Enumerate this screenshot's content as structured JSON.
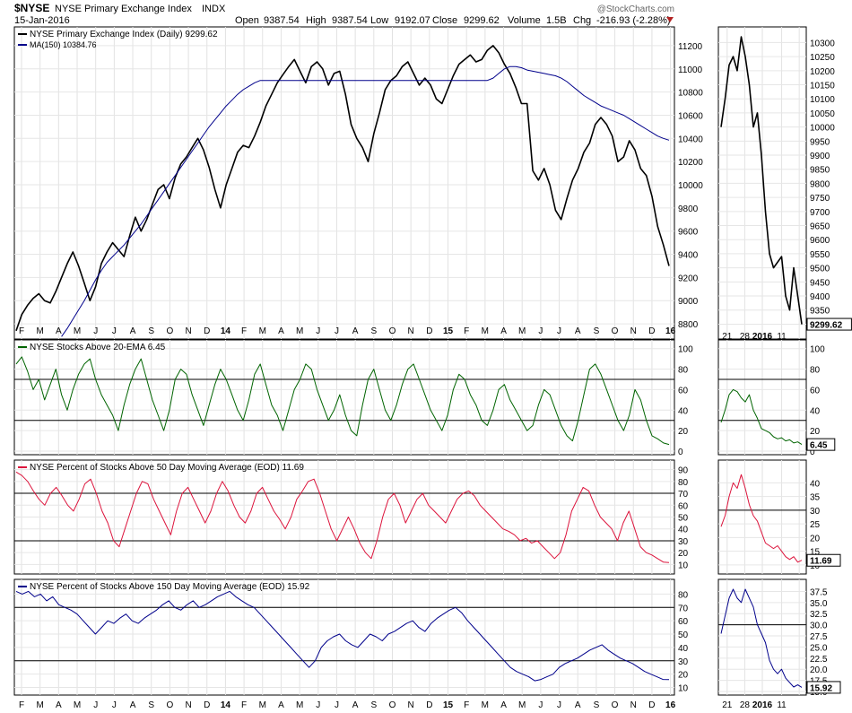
{
  "header": {
    "symbol": "$NYSE",
    "name": "NYSE Primary Exchange Index",
    "exchange": "INDX",
    "date": "15-Jan-2016",
    "open_label": "Open",
    "open": "9387.54",
    "high_label": "High",
    "high": "9387.54",
    "low_label": "Low",
    "low": "9192.07",
    "close_label": "Close",
    "close": "9299.62",
    "volume_label": "Volume",
    "volume": "1.5B",
    "chg_label": "Chg",
    "chg": "-216.93 (-2.28%)",
    "watermark": "@StockCharts.com"
  },
  "x_axis": {
    "months": [
      "F",
      "M",
      "A",
      "M",
      "J",
      "J",
      "A",
      "S",
      "O",
      "N",
      "D",
      "14",
      "F",
      "M",
      "A",
      "M",
      "J",
      "J",
      "A",
      "S",
      "O",
      "N",
      "D",
      "15",
      "F",
      "M",
      "A",
      "M",
      "J",
      "J",
      "A",
      "S",
      "O",
      "N",
      "D",
      "16"
    ],
    "zoom_labels": [
      "21",
      "28",
      "2016",
      "11"
    ]
  },
  "colors": {
    "price": "#000000",
    "ma": "#00008b",
    "ema": "#006400",
    "p50": "#dc143c",
    "p150": "#00008b"
  },
  "chart_data": [
    {
      "type": "line",
      "title": "NYSE Primary Exchange Index (Daily) 9299.62",
      "legend": [
        "NYSE Primary Exchange Index (Daily) 9299.62",
        "MA(150) 10384.76"
      ],
      "ylim": [
        8700,
        11300
      ],
      "yticks": [
        8800,
        9000,
        9200,
        9400,
        9600,
        9800,
        10000,
        10200,
        10400,
        10600,
        10800,
        11000,
        11200
      ],
      "series": [
        {
          "name": "NYSE",
          "key": "price",
          "values": [
            8740,
            8880,
            8960,
            9020,
            9060,
            9000,
            8980,
            9080,
            9200,
            9320,
            9420,
            9300,
            9150,
            9000,
            9120,
            9320,
            9420,
            9500,
            9440,
            9380,
            9560,
            9720,
            9600,
            9700,
            9830,
            9960,
            10000,
            9880,
            10060,
            10180,
            10240,
            10320,
            10400,
            10300,
            10150,
            9960,
            9800,
            10000,
            10140,
            10280,
            10340,
            10320,
            10420,
            10540,
            10680,
            10780,
            10880,
            10950,
            11020,
            11080,
            10980,
            10880,
            11020,
            11060,
            11000,
            10860,
            10960,
            10980,
            10780,
            10520,
            10400,
            10320,
            10200,
            10440,
            10620,
            10820,
            10900,
            10940,
            11020,
            11060,
            10960,
            10860,
            10920,
            10860,
            10740,
            10700,
            10820,
            10940,
            11040,
            11080,
            11120,
            11060,
            11080,
            11160,
            11200,
            11140,
            11040,
            10960,
            10840,
            10700,
            10700,
            10120,
            10040,
            10140,
            10000,
            9780,
            9700,
            9880,
            10040,
            10140,
            10280,
            10360,
            10520,
            10580,
            10520,
            10420,
            10200,
            10240,
            10380,
            10300,
            10140,
            10080,
            9900,
            9640,
            9480,
            9299.62
          ]
        },
        {
          "name": "MA(150)",
          "key": "ma",
          "values": [
            null,
            null,
            null,
            null,
            null,
            null,
            null,
            null,
            8690,
            8760,
            8840,
            8920,
            9000,
            9090,
            9180,
            9260,
            9330,
            9380,
            9430,
            9480,
            9540,
            9600,
            9660,
            9730,
            9800,
            9870,
            9940,
            10010,
            10080,
            10150,
            10220,
            10290,
            10360,
            10430,
            10500,
            10560,
            10620,
            10680,
            10730,
            10780,
            10820,
            10850,
            10880,
            10900,
            10900,
            10900,
            10900,
            10900,
            10900,
            10900,
            10900,
            10900,
            10900,
            10900,
            10900,
            10900,
            10900,
            10900,
            10900,
            10900,
            10900,
            10900,
            10900,
            10900,
            10900,
            10900,
            10900,
            10900,
            10900,
            10900,
            10900,
            10900,
            10900,
            10900,
            10900,
            10900,
            10900,
            10900,
            10900,
            10900,
            10900,
            10900,
            10900,
            10900,
            10920,
            10960,
            11000,
            11020,
            11020,
            11010,
            10990,
            10980,
            10970,
            10960,
            10950,
            10940,
            10920,
            10890,
            10850,
            10810,
            10770,
            10740,
            10710,
            10680,
            10660,
            10640,
            10620,
            10600,
            10570,
            10540,
            10510,
            10480,
            10450,
            10420,
            10400,
            10384.76
          ]
        }
      ],
      "zoom": {
        "ylim": [
          9260,
          10330
        ],
        "yticks": [
          9300,
          9350,
          9400,
          9450,
          9500,
          9550,
          9600,
          9650,
          9700,
          9750,
          9800,
          9850,
          9900,
          9950,
          10000,
          10050,
          10100,
          10150,
          10200,
          10250,
          10300
        ],
        "values": [
          10000,
          10100,
          10220,
          10250,
          10200,
          10320,
          10250,
          10150,
          10000,
          10050,
          9900,
          9700,
          9550,
          9500,
          9520,
          9540,
          9400,
          9350,
          9500,
          9400,
          9299.62
        ],
        "last_label": "9299.62"
      }
    },
    {
      "type": "line",
      "title": "NYSE Stocks Above 20-EMA 6.45",
      "ylim": [
        0,
        105
      ],
      "yticks": [
        0,
        20,
        40,
        60,
        80,
        100
      ],
      "hlines": [
        30,
        70
      ],
      "series": [
        {
          "name": "NYSE Stocks Above 20-EMA",
          "key": "ema",
          "values": [
            85,
            92,
            78,
            60,
            70,
            50,
            65,
            80,
            55,
            40,
            60,
            75,
            85,
            90,
            70,
            55,
            45,
            35,
            20,
            45,
            65,
            80,
            90,
            70,
            50,
            35,
            20,
            40,
            70,
            80,
            75,
            55,
            40,
            25,
            45,
            65,
            80,
            70,
            55,
            40,
            30,
            50,
            75,
            85,
            65,
            45,
            35,
            20,
            40,
            60,
            70,
            85,
            80,
            60,
            45,
            30,
            40,
            55,
            35,
            20,
            15,
            45,
            70,
            80,
            60,
            40,
            30,
            45,
            65,
            80,
            85,
            70,
            55,
            40,
            30,
            20,
            35,
            60,
            75,
            70,
            55,
            45,
            30,
            25,
            40,
            60,
            65,
            50,
            40,
            30,
            20,
            25,
            45,
            60,
            55,
            40,
            25,
            15,
            10,
            30,
            55,
            80,
            85,
            75,
            60,
            45,
            30,
            20,
            35,
            60,
            50,
            30,
            15,
            12,
            8,
            6.45
          ]
        }
      ],
      "zoom": {
        "ylim": [
          0,
          105
        ],
        "yticks": [
          0,
          20,
          40,
          60,
          80,
          100
        ],
        "hlines": [
          30,
          70
        ],
        "values": [
          28,
          40,
          55,
          60,
          58,
          52,
          48,
          55,
          40,
          32,
          22,
          20,
          18,
          14,
          12,
          13,
          10,
          11,
          8,
          9,
          6.45
        ],
        "last_label": "6.45"
      }
    },
    {
      "type": "line",
      "title": "NYSE Percent of Stocks Above 50 Day Moving Average (EOD) 11.69",
      "ylim": [
        5,
        95
      ],
      "yticks": [
        10,
        20,
        30,
        40,
        50,
        60,
        70,
        80,
        90
      ],
      "hlines": [
        30,
        70
      ],
      "series": [
        {
          "name": "Percent Above 50DMA",
          "key": "p50",
          "values": [
            88,
            85,
            80,
            72,
            65,
            60,
            70,
            75,
            68,
            60,
            55,
            65,
            78,
            82,
            70,
            55,
            45,
            30,
            25,
            40,
            55,
            70,
            80,
            78,
            65,
            55,
            45,
            35,
            55,
            70,
            75,
            65,
            55,
            45,
            55,
            70,
            80,
            72,
            60,
            50,
            45,
            55,
            70,
            75,
            65,
            55,
            48,
            40,
            50,
            65,
            72,
            80,
            82,
            70,
            55,
            40,
            30,
            40,
            50,
            40,
            28,
            20,
            15,
            30,
            50,
            65,
            70,
            60,
            45,
            55,
            65,
            70,
            60,
            55,
            50,
            45,
            55,
            65,
            70,
            72,
            68,
            60,
            55,
            50,
            45,
            40,
            38,
            35,
            30,
            32,
            28,
            30,
            25,
            20,
            15,
            20,
            35,
            55,
            65,
            75,
            72,
            60,
            50,
            45,
            40,
            30,
            45,
            55,
            40,
            25,
            20,
            18,
            15,
            12,
            11.69
          ]
        }
      ],
      "zoom": {
        "ylim": [
          8,
          47
        ],
        "yticks": [
          10,
          15,
          20,
          25,
          30,
          35,
          40
        ],
        "hlines": [
          30
        ],
        "values": [
          24,
          28,
          35,
          40,
          38,
          43,
          38,
          32,
          28,
          26,
          22,
          18,
          17,
          16,
          17,
          15,
          13,
          12,
          13,
          11,
          11.69
        ],
        "last_label": "11.69"
      }
    },
    {
      "type": "line",
      "title": "NYSE Percent of Stocks Above 150 Day Moving Average (EOD) 15.92",
      "ylim": [
        7,
        87
      ],
      "yticks": [
        10,
        20,
        30,
        40,
        50,
        60,
        70,
        80
      ],
      "hlines": [
        30,
        70
      ],
      "series": [
        {
          "name": "Percent Above 150DMA",
          "key": "p150",
          "values": [
            82,
            80,
            82,
            78,
            80,
            75,
            78,
            72,
            70,
            68,
            65,
            60,
            55,
            50,
            55,
            60,
            58,
            62,
            65,
            60,
            58,
            62,
            65,
            68,
            72,
            75,
            70,
            68,
            72,
            75,
            70,
            72,
            75,
            78,
            80,
            82,
            78,
            75,
            72,
            70,
            65,
            60,
            55,
            50,
            45,
            40,
            35,
            30,
            25,
            30,
            40,
            45,
            48,
            50,
            45,
            42,
            40,
            45,
            50,
            48,
            45,
            50,
            52,
            55,
            58,
            60,
            55,
            52,
            58,
            62,
            65,
            68,
            70,
            66,
            60,
            55,
            50,
            45,
            40,
            35,
            30,
            25,
            22,
            20,
            18,
            15,
            16,
            18,
            20,
            25,
            28,
            30,
            32,
            35,
            38,
            40,
            42,
            38,
            35,
            32,
            30,
            28,
            25,
            22,
            20,
            18,
            16,
            15.92
          ]
        }
      ],
      "zoom": {
        "ylim": [
          15,
          39
        ],
        "yticks": [
          15.0,
          17.5,
          20.0,
          22.5,
          25.0,
          27.5,
          30.0,
          32.5,
          35.0,
          37.5
        ],
        "hlines": [
          30.0
        ],
        "values": [
          28,
          32,
          36,
          38,
          36,
          35,
          38,
          36,
          34,
          30,
          28,
          26,
          22,
          20,
          19,
          20,
          18,
          17,
          16,
          16.5,
          15.92
        ],
        "last_label": "15.92"
      }
    }
  ]
}
